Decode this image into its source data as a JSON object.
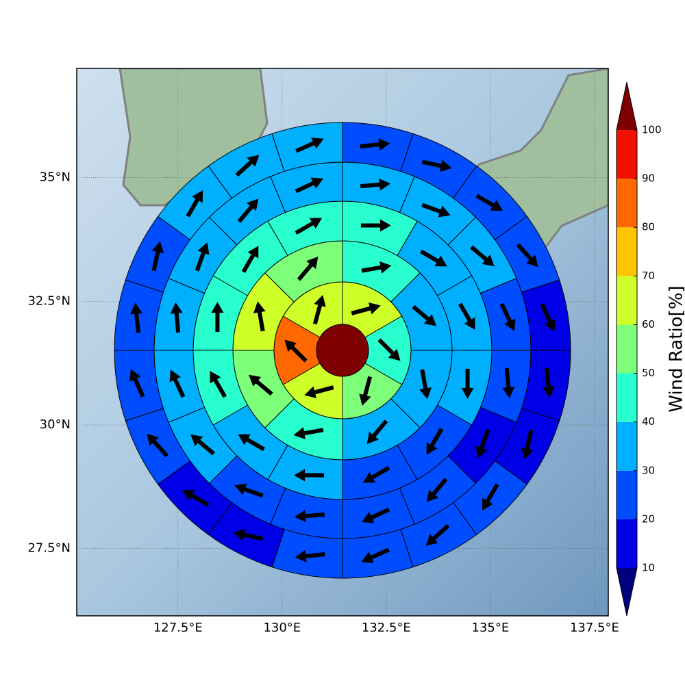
{
  "chart_data": {
    "type": "polar-sector-map",
    "xlim": [
      125.07,
      137.83
    ],
    "ylim": [
      26.14,
      37.21
    ],
    "xticks": [
      {
        "value": 127.5,
        "label": "127.5°E"
      },
      {
        "value": 130,
        "label": "130°E"
      },
      {
        "value": 132.5,
        "label": "132.5°E"
      },
      {
        "value": 135,
        "label": "135°E"
      },
      {
        "value": 137.5,
        "label": "137.5°E"
      }
    ],
    "yticks": [
      {
        "value": 27.5,
        "label": "27.5°N"
      },
      {
        "value": 30,
        "label": "30°N"
      },
      {
        "value": 32.5,
        "label": "32.5°N"
      },
      {
        "value": 35,
        "label": "35°N"
      }
    ],
    "grid": true,
    "colorbar": {
      "label": "Wind Ratio[%]",
      "ticks": [
        10,
        20,
        30,
        40,
        50,
        60,
        70,
        80,
        90,
        100
      ],
      "colors": [
        "#00007f",
        "#0000e6",
        "#004cff",
        "#00b0ff",
        "#29ffce",
        "#7dff7a",
        "#ceff29",
        "#ffc400",
        "#ff6800",
        "#f01000",
        "#7f0000"
      ]
    },
    "center": {
      "value": 100
    },
    "rings": [
      {
        "values": [
          65,
          45,
          55,
          65,
          85,
          65
        ],
        "directions": [
          75,
          135,
          195,
          255,
          315,
          15
        ]
      },
      {
        "values": [
          45,
          35,
          35,
          35,
          45,
          55,
          65,
          55
        ],
        "directions": [
          80,
          130,
          170,
          220,
          260,
          310,
          350,
          40
        ]
      },
      {
        "values": [
          45,
          35,
          35,
          35,
          25,
          25,
          35,
          35,
          45,
          45,
          45,
          45
        ],
        "directions": [
          90,
          120,
          150,
          180,
          210,
          240,
          270,
          300,
          330,
          0,
          30,
          60
        ]
      },
      {
        "values": [
          35,
          35,
          35,
          25,
          25,
          15,
          25,
          25,
          25,
          25,
          35,
          35,
          35,
          35,
          35,
          35
        ],
        "directions": [
          85,
          110,
          130,
          155,
          175,
          200,
          220,
          245,
          265,
          290,
          310,
          335,
          355,
          20,
          40,
          65
        ]
      },
      {
        "values": [
          25,
          25,
          25,
          25,
          15,
          15,
          15,
          25,
          25,
          25,
          25,
          15,
          15,
          25,
          25,
          25,
          25,
          35,
          35,
          35
        ],
        "directions": [
          84,
          102,
          120,
          138,
          156,
          174,
          192,
          210,
          228,
          246,
          264,
          282,
          300,
          318,
          336,
          354,
          12,
          30,
          48,
          66
        ]
      }
    ]
  }
}
